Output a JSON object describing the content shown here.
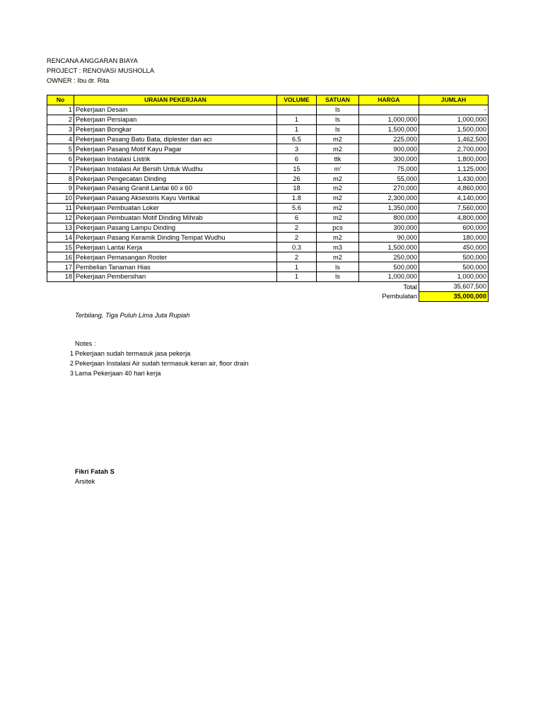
{
  "header": {
    "title": "RENCANA ANGGARAN BIAYA",
    "project": "PROJECT : RENOVASI MUSHOLLA",
    "owner": "OWNER : Ibu dr. Rita"
  },
  "table": {
    "columns": [
      "No",
      "URAIAN PEKERJAAN",
      "VOLUME",
      "SATUAN",
      "HARGA",
      "JUMLAH"
    ],
    "rows": [
      {
        "no": "1",
        "uraian": "Pekerjaan Desain",
        "volume": "",
        "satuan": "ls",
        "harga": "",
        "jumlah": "-"
      },
      {
        "no": "2",
        "uraian": "Pekerjaan Persiapan",
        "volume": "1",
        "satuan": "ls",
        "harga": "1,000,000",
        "jumlah": "1,000,000"
      },
      {
        "no": "3",
        "uraian": "Pekerjaan Bongkar",
        "volume": "1",
        "satuan": "ls",
        "harga": "1,500,000",
        "jumlah": "1,500,000"
      },
      {
        "no": "4",
        "uraian": "Pekerjaan Pasang Batu Bata, diplester dan aci",
        "volume": "6.5",
        "satuan": "m2",
        "harga": "225,000",
        "jumlah": "1,462,500"
      },
      {
        "no": "5",
        "uraian": "Pekerjaan Pasang Motif Kayu Pagar",
        "volume": "3",
        "satuan": "m2",
        "harga": "900,000",
        "jumlah": "2,700,000"
      },
      {
        "no": "6",
        "uraian": "Pekerjaan Instalasi Listrik",
        "volume": "6",
        "satuan": "ttk",
        "harga": "300,000",
        "jumlah": "1,800,000"
      },
      {
        "no": "7",
        "uraian": "Pekerjaan Instalasi Air Bersih Untuk Wudhu",
        "volume": "15",
        "satuan": "m'",
        "harga": "75,000",
        "jumlah": "1,125,000"
      },
      {
        "no": "8",
        "uraian": "Pekerjaan Pengecatan Dinding",
        "volume": "26",
        "satuan": "m2",
        "harga": "55,000",
        "jumlah": "1,430,000"
      },
      {
        "no": "9",
        "uraian": "Pekerjaan Pasang Granit Lantai 60 x 60",
        "volume": "18",
        "satuan": "m2",
        "harga": "270,000",
        "jumlah": "4,860,000"
      },
      {
        "no": "10",
        "uraian": "Pekerjaan Pasang Aksesoris Kayu Vertikal",
        "volume": "1.8",
        "satuan": "m2",
        "harga": "2,300,000",
        "jumlah": "4,140,000"
      },
      {
        "no": "11",
        "uraian": "Pekerjaan Pembuatan Loker",
        "volume": "5.6",
        "satuan": "m2",
        "harga": "1,350,000",
        "jumlah": "7,560,000"
      },
      {
        "no": "12",
        "uraian": "Pekerjaan Pembuatan Motif Dinding Mihrab",
        "volume": "6",
        "satuan": "m2",
        "harga": "800,000",
        "jumlah": "4,800,000"
      },
      {
        "no": "13",
        "uraian": "Pekerjaan Pasang Lampu Dinding",
        "volume": "2",
        "satuan": "pcs",
        "harga": "300,000",
        "jumlah": "600,000"
      },
      {
        "no": "14",
        "uraian": "Pekerjaan Pasang Keramik Dinding Tempat Wudhu",
        "volume": "2",
        "satuan": "m2",
        "harga": "90,000",
        "jumlah": "180,000"
      },
      {
        "no": "15",
        "uraian": "Pekerjaan Lantai Kerja",
        "volume": "0.3",
        "satuan": "m3",
        "harga": "1,500,000",
        "jumlah": "450,000"
      },
      {
        "no": "16",
        "uraian": "Pekerjaan Pemasangan Roster",
        "volume": "2",
        "satuan": "m2",
        "harga": "250,000",
        "jumlah": "500,000"
      },
      {
        "no": "17",
        "uraian": "Pembelian Tanaman Hias",
        "volume": "1",
        "satuan": "ls",
        "harga": "500,000",
        "jumlah": "500,000"
      },
      {
        "no": "18",
        "uraian": "Pekerjaan Pembersihan",
        "volume": "1",
        "satuan": "ls",
        "harga": "1,000,000",
        "jumlah": "1,000,000"
      }
    ],
    "total_label": "Total",
    "total_value": "35,607,500",
    "rounding_label": "Pembulatan",
    "rounding_value": "35,000,000"
  },
  "terbilang": "Terbilang, Tiga Puluh Lima Juta Rupiah",
  "notes": {
    "title": "Notes :",
    "items": [
      {
        "no": "1",
        "text": "Pekerjaan sudah termasuk jasa pekerja"
      },
      {
        "no": "2",
        "text": "Pekerjaan Instalasi Air sudah termasuk keran air, floor drain"
      },
      {
        "no": "3",
        "text": "Lama Pekerjaan 40 hari kerja"
      }
    ]
  },
  "signature": {
    "name": "Fikri Fatah S",
    "role": "Arsitek"
  },
  "colors": {
    "header_fill": "#ffff00"
  }
}
